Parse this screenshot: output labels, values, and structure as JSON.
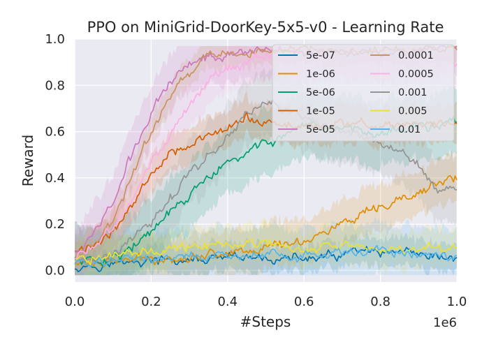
{
  "chart_data": {
    "type": "line",
    "title": "PPO on MiniGrid-DoorKey-5x5-v0 - Learning Rate",
    "xlabel": "#Steps",
    "ylabel": "Reward",
    "x_offset_label": "1e6",
    "xlim": [
      0,
      1.0
    ],
    "ylim": [
      -0.05,
      1.0
    ],
    "xticks": [
      0.0,
      0.2,
      0.4,
      0.6,
      0.8,
      1.0
    ],
    "xtick_labels": [
      "0.0",
      "0.2",
      "0.4",
      "0.6",
      "0.8",
      "1.0"
    ],
    "yticks": [
      0.0,
      0.2,
      0.4,
      0.6,
      0.8,
      1.0
    ],
    "ytick_labels": [
      "0.0",
      "0.2",
      "0.4",
      "0.6",
      "0.8",
      "1.0"
    ],
    "grid": true,
    "legend": {
      "placement": "top-right",
      "columns": 2
    },
    "series": [
      {
        "name": "5e-07",
        "color": "#0173b2",
        "x": [
          0,
          0.1,
          0.2,
          0.3,
          0.4,
          0.5,
          0.6,
          0.7,
          0.75,
          0.8,
          0.85,
          0.9,
          1.0
        ],
        "values": [
          0.02,
          0.03,
          0.04,
          0.04,
          0.05,
          0.05,
          0.05,
          0.06,
          0.09,
          0.06,
          0.08,
          0.05,
          0.05
        ]
      },
      {
        "name": "1e-06",
        "color": "#de8f05",
        "x": [
          0,
          0.1,
          0.2,
          0.3,
          0.4,
          0.5,
          0.6,
          0.7,
          0.8,
          0.85,
          0.9,
          0.95,
          1.0
        ],
        "values": [
          0.03,
          0.04,
          0.05,
          0.06,
          0.08,
          0.1,
          0.13,
          0.2,
          0.26,
          0.3,
          0.33,
          0.38,
          0.4
        ]
      },
      {
        "name": "5e-06",
        "color": "#029e73",
        "x": [
          0,
          0.05,
          0.1,
          0.15,
          0.2,
          0.25,
          0.3,
          0.35,
          0.4,
          0.45,
          0.5,
          0.55,
          0.6,
          0.7,
          0.8,
          0.9,
          1.0
        ],
        "values": [
          0.05,
          0.04,
          0.06,
          0.1,
          0.16,
          0.25,
          0.32,
          0.4,
          0.46,
          0.5,
          0.56,
          0.58,
          0.6,
          0.62,
          0.6,
          0.62,
          0.64
        ]
      },
      {
        "name": "1e-05",
        "color": "#d55e00",
        "x": [
          0,
          0.05,
          0.1,
          0.15,
          0.2,
          0.25,
          0.3,
          0.35,
          0.4,
          0.45,
          0.5,
          0.55,
          0.6
        ],
        "values": [
          0.08,
          0.1,
          0.18,
          0.28,
          0.42,
          0.52,
          0.55,
          0.58,
          0.6,
          0.66,
          0.64,
          0.62,
          0.63
        ]
      },
      {
        "name": "5e-05",
        "color": "#cc78bc",
        "x": [
          0,
          0.05,
          0.1,
          0.15,
          0.2,
          0.25,
          0.3,
          0.35,
          0.4,
          0.5,
          0.6,
          1.0
        ],
        "values": [
          0.08,
          0.15,
          0.3,
          0.5,
          0.68,
          0.82,
          0.9,
          0.93,
          0.94,
          0.95,
          0.95,
          0.95
        ]
      },
      {
        "name": "0.0001",
        "color": "#ca9161",
        "x": [
          0,
          0.05,
          0.1,
          0.15,
          0.2,
          0.25,
          0.3,
          0.35,
          0.4,
          0.5,
          0.6,
          1.0
        ],
        "values": [
          0.05,
          0.1,
          0.22,
          0.4,
          0.6,
          0.76,
          0.86,
          0.92,
          0.94,
          0.95,
          0.95,
          0.95
        ]
      },
      {
        "name": "0.0005",
        "color": "#fbafe4",
        "x": [
          0,
          0.05,
          0.1,
          0.15,
          0.2,
          0.25,
          0.3,
          0.35,
          0.4,
          0.45,
          0.5,
          0.6,
          0.8,
          1.0
        ],
        "values": [
          0.05,
          0.1,
          0.18,
          0.3,
          0.46,
          0.6,
          0.72,
          0.82,
          0.86,
          0.9,
          0.92,
          0.9,
          0.92,
          0.9
        ]
      },
      {
        "name": "0.001",
        "color": "#949494",
        "x": [
          0,
          0.1,
          0.2,
          0.25,
          0.3,
          0.35,
          0.4,
          0.45,
          0.5,
          0.55,
          0.6,
          0.7,
          0.8,
          0.9,
          0.95,
          1.0
        ],
        "values": [
          0.05,
          0.08,
          0.2,
          0.32,
          0.42,
          0.5,
          0.58,
          0.68,
          0.74,
          0.7,
          0.66,
          0.6,
          0.56,
          0.45,
          0.35,
          0.33
        ]
      },
      {
        "name": "0.005",
        "color": "#ece133",
        "x": [
          0,
          0.1,
          0.2,
          0.3,
          0.4,
          0.5,
          0.6,
          0.7,
          0.8,
          0.9,
          1.0
        ],
        "values": [
          0.04,
          0.06,
          0.08,
          0.1,
          0.12,
          0.11,
          0.1,
          0.11,
          0.1,
          0.09,
          0.1
        ]
      },
      {
        "name": "0.01",
        "color": "#56b4e9",
        "x": [
          0,
          0.1,
          0.2,
          0.3,
          0.4,
          0.5,
          0.6,
          0.7,
          0.8,
          0.9,
          1.0
        ],
        "values": [
          0.03,
          0.04,
          0.05,
          0.05,
          0.06,
          0.07,
          0.06,
          0.07,
          0.08,
          0.07,
          0.06
        ]
      }
    ]
  }
}
